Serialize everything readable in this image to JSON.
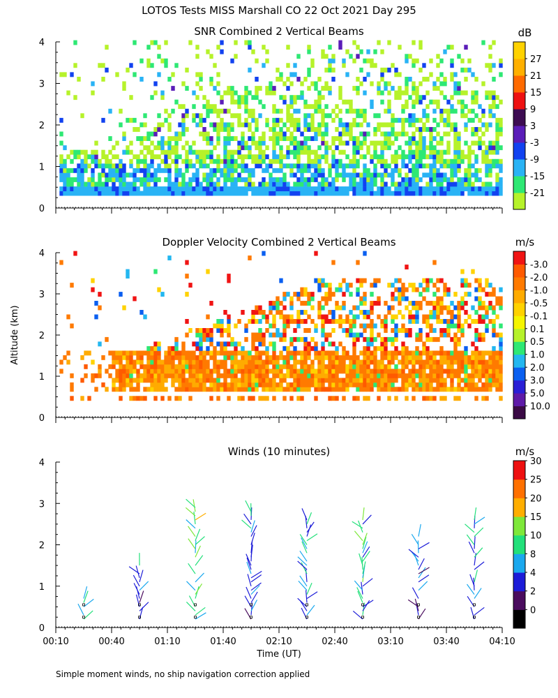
{
  "main_title": "LOTOS Tests MISS Marshall CO  22 Oct 2021 Day 295",
  "xlabel": "Time (UT)",
  "ylabel": "Altitude (km)",
  "footnote": "Simple moment winds, no ship navigation correction applied",
  "xaxis": {
    "range_minutes": [
      10,
      250
    ],
    "ticks": [
      {
        "t": 10,
        "label": "00:10"
      },
      {
        "t": 40,
        "label": "00:40"
      },
      {
        "t": 70,
        "label": "01:10"
      },
      {
        "t": 100,
        "label": "01:40"
      },
      {
        "t": 130,
        "label": "02:10"
      },
      {
        "t": 160,
        "label": "02:40"
      },
      {
        "t": 190,
        "label": "03:10"
      },
      {
        "t": 220,
        "label": "03:40"
      },
      {
        "t": 250,
        "label": "04:10"
      }
    ]
  },
  "chart_data": [
    {
      "type": "heatmap",
      "title": "SNR Combined 2 Vertical Beams",
      "ylabel": "Altitude (km)",
      "ylim": [
        0,
        4
      ],
      "yticks": [
        "0",
        "1",
        "2",
        "3",
        "4"
      ],
      "units": "dB",
      "colorbar": {
        "labels": [
          "-21",
          "-15",
          "-9",
          "-3",
          "3",
          "9",
          "15",
          "21",
          "27"
        ],
        "colors": [
          "#b6f22a",
          "#2ee874",
          "#29b3f5",
          "#1242f0",
          "#5a1db8",
          "#3d0c52",
          "#ee1111",
          "#ff6a00",
          "#ffb000",
          "#ffd200"
        ]
      },
      "seed": 11
    },
    {
      "type": "heatmap",
      "title": "Doppler Velocity Combined 2 Vertical Beams",
      "ylabel": "Altitude (km)",
      "ylim": [
        0,
        4
      ],
      "yticks": [
        "0",
        "1",
        "2",
        "3",
        "4"
      ],
      "units": "m/s",
      "colorbar": {
        "labels": [
          "10.0",
          "5.0",
          "3.0",
          "2.0",
          "1.0",
          "0.5",
          "0.1",
          "-0.1",
          "-0.5",
          "-1.0",
          "-2.0",
          "-3.0"
        ],
        "colors": [
          "#3a0a45",
          "#5e1aa8",
          "#2a1fd6",
          "#0a5ff0",
          "#23b7f0",
          "#2ee874",
          "#b6f22a",
          "#f5f500",
          "#ffd200",
          "#ffab00",
          "#ff7a00",
          "#ff5a00",
          "#f01414"
        ]
      },
      "seed": 23
    },
    {
      "type": "wind-barbs",
      "title": "Winds (10 minutes)",
      "ylabel": "Altitude (km)",
      "ylim": [
        0,
        4
      ],
      "yticks": [
        "0",
        "1",
        "2",
        "3",
        "4"
      ],
      "units": "m/s",
      "colorbar": {
        "labels": [
          "0",
          "2",
          "4",
          "8",
          "10",
          "15",
          "20",
          "25",
          "30"
        ],
        "colors": [
          "#000000",
          "#4a0c5e",
          "#1c1cd8",
          "#1aa8ee",
          "#22e07a",
          "#7ee83a",
          "#ffae00",
          "#ff7000",
          "#ee1010"
        ]
      },
      "profiles": [
        {
          "t": 25,
          "top_km": 0.75,
          "max_ws": 16
        },
        {
          "t": 55,
          "top_km": 1.6,
          "max_ws": 12
        },
        {
          "t": 85,
          "top_km": 3.05,
          "max_ws": 22
        },
        {
          "t": 115,
          "top_km": 2.9,
          "max_ws": 15
        },
        {
          "t": 145,
          "top_km": 2.65,
          "max_ws": 16
        },
        {
          "t": 175,
          "top_km": 2.65,
          "max_ws": 20
        },
        {
          "t": 205,
          "top_km": 2.3,
          "max_ws": 12
        },
        {
          "t": 235,
          "top_km": 2.65,
          "max_ws": 14
        }
      ]
    }
  ]
}
